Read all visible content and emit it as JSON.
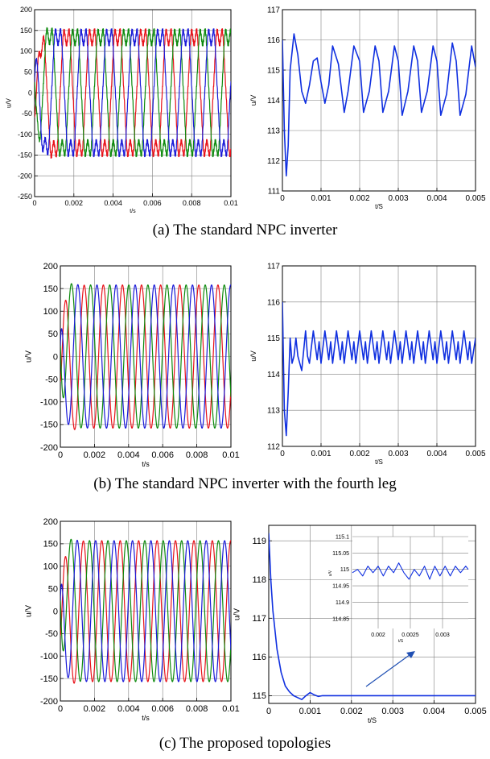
{
  "captions": {
    "a": "(a) The standard NPC inverter",
    "b": "(b) The standard NPC inverter with the fourth leg",
    "c": "(c) The proposed topologies"
  },
  "colors": {
    "phase_a": "#e8121a",
    "phase_b": "#0d8a0d",
    "phase_c": "#1a1ad8",
    "single": "#1030e0",
    "grid": "#808080"
  },
  "chart_data": [
    {
      "id": "a-left",
      "type": "line",
      "xlabel": "t/s",
      "ylabel": "u/V",
      "xlim": [
        0,
        0.01
      ],
      "ylim": [
        -250,
        200
      ],
      "xticks": [
        0,
        0.002,
        0.004,
        0.006,
        0.008,
        0.01
      ],
      "xtick_labels": [
        "0",
        "0.002",
        "0.004",
        "0.006",
        "0.008",
        "0.01"
      ],
      "yticks": [
        -250,
        -200,
        -150,
        -100,
        -50,
        0,
        50,
        100,
        150,
        200
      ],
      "ytick_labels": [
        "-250",
        "-200",
        "-150",
        "-100",
        "-50",
        "0",
        "50",
        "100",
        "150",
        "200"
      ],
      "grid": true,
      "three_phase": {
        "amplitude": 170,
        "period": 0.0013,
        "phase_shift_deg": [
          0,
          120,
          240
        ],
        "distorted": true,
        "transient": "start"
      },
      "series_colors": [
        "#e8121a",
        "#0d8a0d",
        "#1a1ad8"
      ]
    },
    {
      "id": "a-right",
      "type": "line",
      "xlabel": "t/S",
      "ylabel": "u/V",
      "xlim": [
        0,
        0.005
      ],
      "ylim": [
        111,
        117
      ],
      "xticks": [
        0,
        0.001,
        0.002,
        0.003,
        0.004,
        0.005
      ],
      "xtick_labels": [
        "0",
        "0.001",
        "0.002",
        "0.003",
        "0.004",
        "0.005"
      ],
      "yticks": [
        111,
        112,
        113,
        114,
        115,
        116,
        117
      ],
      "ytick_labels": [
        "111",
        "112",
        "113",
        "114",
        "115",
        "116",
        "117"
      ],
      "grid": true,
      "x": [
        0,
        5e-05,
        0.0001,
        0.00015,
        0.0002,
        0.0003,
        0.0004,
        0.0005,
        0.0006,
        0.0007,
        0.0008,
        0.0009,
        0.001,
        0.0011,
        0.0012,
        0.0013,
        0.00145,
        0.0016,
        0.0017,
        0.00185,
        0.002,
        0.0021,
        0.00225,
        0.0024,
        0.0025,
        0.0026,
        0.00275,
        0.0029,
        0.003,
        0.0031,
        0.00325,
        0.0034,
        0.0035,
        0.0036,
        0.00375,
        0.0039,
        0.004,
        0.0041,
        0.00425,
        0.0044,
        0.0045,
        0.0046,
        0.00475,
        0.0049,
        0.005
      ],
      "y": [
        116,
        113,
        111.5,
        112.5,
        115,
        116.2,
        115.5,
        114.3,
        113.9,
        114.5,
        115.3,
        115.4,
        114.6,
        113.9,
        114.5,
        115.8,
        115.2,
        113.6,
        114.3,
        115.8,
        115.3,
        113.6,
        114.3,
        115.8,
        115.3,
        113.6,
        114.3,
        115.8,
        115.3,
        113.5,
        114.3,
        115.8,
        115.3,
        113.6,
        114.3,
        115.8,
        115.3,
        113.5,
        114.2,
        115.9,
        115.3,
        113.5,
        114.2,
        115.8,
        115.1
      ],
      "series_colors": [
        "#1030e0"
      ]
    },
    {
      "id": "b-left",
      "type": "line",
      "xlabel": "t/s",
      "ylabel": "u/V",
      "xlim": [
        0,
        0.01
      ],
      "ylim": [
        -200,
        200
      ],
      "xticks": [
        0,
        0.002,
        0.004,
        0.006,
        0.008,
        0.01
      ],
      "xtick_labels": [
        "0",
        "0.002",
        "0.004",
        "0.006",
        "0.008",
        "0.01"
      ],
      "yticks": [
        -200,
        -150,
        -100,
        -50,
        0,
        50,
        100,
        150,
        200
      ],
      "ytick_labels": [
        "-200",
        "-150",
        "-100",
        "-50",
        "0",
        "50",
        "100",
        "150",
        "200"
      ],
      "grid": true,
      "three_phase": {
        "amplitude": 158,
        "period": 0.00112,
        "phase_shift_deg": [
          0,
          120,
          240
        ],
        "distorted": false,
        "transient": "start"
      },
      "series_colors": [
        "#e8121a",
        "#0d8a0d",
        "#1a1ad8"
      ]
    },
    {
      "id": "b-right",
      "type": "line",
      "xlabel": "t/S",
      "ylabel": "u/V",
      "xlim": [
        0,
        0.005
      ],
      "ylim": [
        112,
        117
      ],
      "xticks": [
        0,
        0.001,
        0.002,
        0.003,
        0.004,
        0.005
      ],
      "xtick_labels": [
        "0",
        "0.001",
        "0.002",
        "0.003",
        "0.004",
        "0.005"
      ],
      "yticks": [
        112,
        113,
        114,
        115,
        116,
        117
      ],
      "ytick_labels": [
        "112",
        "113",
        "114",
        "115",
        "116",
        "117"
      ],
      "grid": true,
      "x": [
        0,
        5e-05,
        0.0001,
        0.00015,
        0.0002,
        0.00025,
        0.0003,
        0.00035,
        0.0004,
        0.0005,
        0.0006,
        0.00065,
        0.0007,
        0.0008,
        0.0009,
        0.00095,
        0.001,
        0.0011,
        0.0012,
        0.00125,
        0.0013,
        0.0014,
        0.0015,
        0.00155,
        0.0016,
        0.0017,
        0.0018,
        0.00185,
        0.0019,
        0.002,
        0.0021,
        0.00215,
        0.0022,
        0.0023,
        0.0024,
        0.00245,
        0.0025,
        0.0026,
        0.0027,
        0.00275,
        0.0028,
        0.0029,
        0.003,
        0.00305,
        0.0031,
        0.0032,
        0.0033,
        0.00335,
        0.0034,
        0.0035,
        0.0036,
        0.00365,
        0.0037,
        0.0038,
        0.0039,
        0.00395,
        0.004,
        0.0041,
        0.0042,
        0.00425,
        0.0043,
        0.0044,
        0.0045,
        0.00455,
        0.0046,
        0.0047,
        0.0048,
        0.00485,
        0.0049,
        0.005
      ],
      "y": [
        116,
        113,
        112.3,
        113.5,
        115,
        114.3,
        114.5,
        115,
        114.5,
        114.1,
        115.2,
        114.5,
        114.3,
        115.2,
        114.4,
        114.9,
        114.3,
        115.2,
        114.4,
        114.9,
        114.3,
        115.2,
        114.4,
        114.9,
        114.3,
        115.2,
        114.4,
        114.9,
        114.3,
        115.2,
        114.4,
        114.9,
        114.3,
        115.2,
        114.4,
        114.9,
        114.3,
        115.2,
        114.4,
        114.9,
        114.3,
        115.2,
        114.4,
        114.9,
        114.3,
        115.2,
        114.4,
        114.9,
        114.3,
        115.2,
        114.4,
        114.9,
        114.3,
        115.2,
        114.4,
        114.9,
        114.3,
        115.2,
        114.4,
        114.9,
        114.3,
        115.2,
        114.4,
        114.9,
        114.3,
        115.2,
        114.4,
        114.9,
        114.3,
        115
      ],
      "series_colors": [
        "#1030e0"
      ]
    },
    {
      "id": "c-left",
      "type": "line",
      "xlabel": "t/s",
      "ylabel": "u/V",
      "xlim": [
        0,
        0.01
      ],
      "ylim": [
        -200,
        200
      ],
      "xticks": [
        0,
        0.002,
        0.004,
        0.006,
        0.008,
        0.01
      ],
      "xtick_labels": [
        "0",
        "0.002",
        "0.004",
        "0.006",
        "0.008",
        "0.01"
      ],
      "yticks": [
        -200,
        -150,
        -100,
        -50,
        0,
        50,
        100,
        150,
        200
      ],
      "ytick_labels": [
        "-200",
        "-150",
        "-100",
        "-50",
        "0",
        "50",
        "100",
        "150",
        "200"
      ],
      "grid": true,
      "three_phase": {
        "amplitude": 157,
        "period": 0.00108,
        "phase_shift_deg": [
          0,
          120,
          240
        ],
        "distorted": false,
        "transient": "start"
      },
      "series_colors": [
        "#e8121a",
        "#0d8a0d",
        "#1a1ad8"
      ]
    },
    {
      "id": "c-right",
      "type": "line",
      "xlabel": "t/S",
      "ylabel": "u/V",
      "xlim": [
        0,
        0.005
      ],
      "ylim": [
        114.8,
        119.4
      ],
      "xticks": [
        0,
        0.001,
        0.002,
        0.003,
        0.004,
        0.005
      ],
      "xtick_labels": [
        "0",
        "0.001",
        "0.002",
        "0.003",
        "0.004",
        "0.005"
      ],
      "yticks": [
        115,
        116,
        117,
        118,
        119
      ],
      "ytick_labels": [
        "115",
        "116",
        "117",
        "118",
        "119"
      ],
      "grid": true,
      "x": [
        0,
        5e-05,
        0.0001,
        0.0002,
        0.0003,
        0.0004,
        0.0005,
        0.0006,
        0.0007,
        0.0008,
        0.0009,
        0.001,
        0.0011,
        0.0012,
        0.0013,
        0.0015,
        0.002,
        0.0025,
        0.003,
        0.0035,
        0.004,
        0.0045,
        0.005
      ],
      "y": [
        119.2,
        118.0,
        117.2,
        116.2,
        115.6,
        115.25,
        115.1,
        115.0,
        114.95,
        114.9,
        115.0,
        115.08,
        115.02,
        114.98,
        115.0,
        115.0,
        115.0,
        115.0,
        115.0,
        115.0,
        115.0,
        115.0,
        115.0
      ],
      "series_colors": [
        "#1030e0"
      ],
      "inset": {
        "xlabel": "t/S",
        "ylabel": "u/V",
        "xlim": [
          0.0016,
          0.0034
        ],
        "ylim": [
          114.82,
          115.1
        ],
        "xtick_labels": [
          "0.002",
          "0.0025",
          "0.003"
        ],
        "xticks": [
          0.002,
          0.0025,
          0.003
        ],
        "ytick_labels": [
          "115.1",
          "115.05",
          "115",
          "114.95",
          "114.9",
          "114.85"
        ],
        "yticks": [
          115.1,
          115.05,
          115,
          114.95,
          114.9,
          114.85
        ],
        "x": [
          0.0016,
          0.00168,
          0.00176,
          0.00184,
          0.00192,
          0.002,
          0.00208,
          0.00216,
          0.00224,
          0.00232,
          0.0024,
          0.00248,
          0.00256,
          0.00264,
          0.00272,
          0.0028,
          0.00288,
          0.00296,
          0.00304,
          0.00312,
          0.0032,
          0.00328,
          0.00336,
          0.0034
        ],
        "y": [
          114.99,
          115.0,
          114.98,
          115.01,
          114.99,
          115.01,
          114.98,
          115.01,
          114.99,
          115.02,
          114.99,
          114.97,
          115.0,
          114.98,
          115.01,
          114.97,
          115.01,
          114.98,
          115.01,
          114.98,
          115.01,
          114.99,
          115.01,
          115.0
        ]
      }
    }
  ]
}
